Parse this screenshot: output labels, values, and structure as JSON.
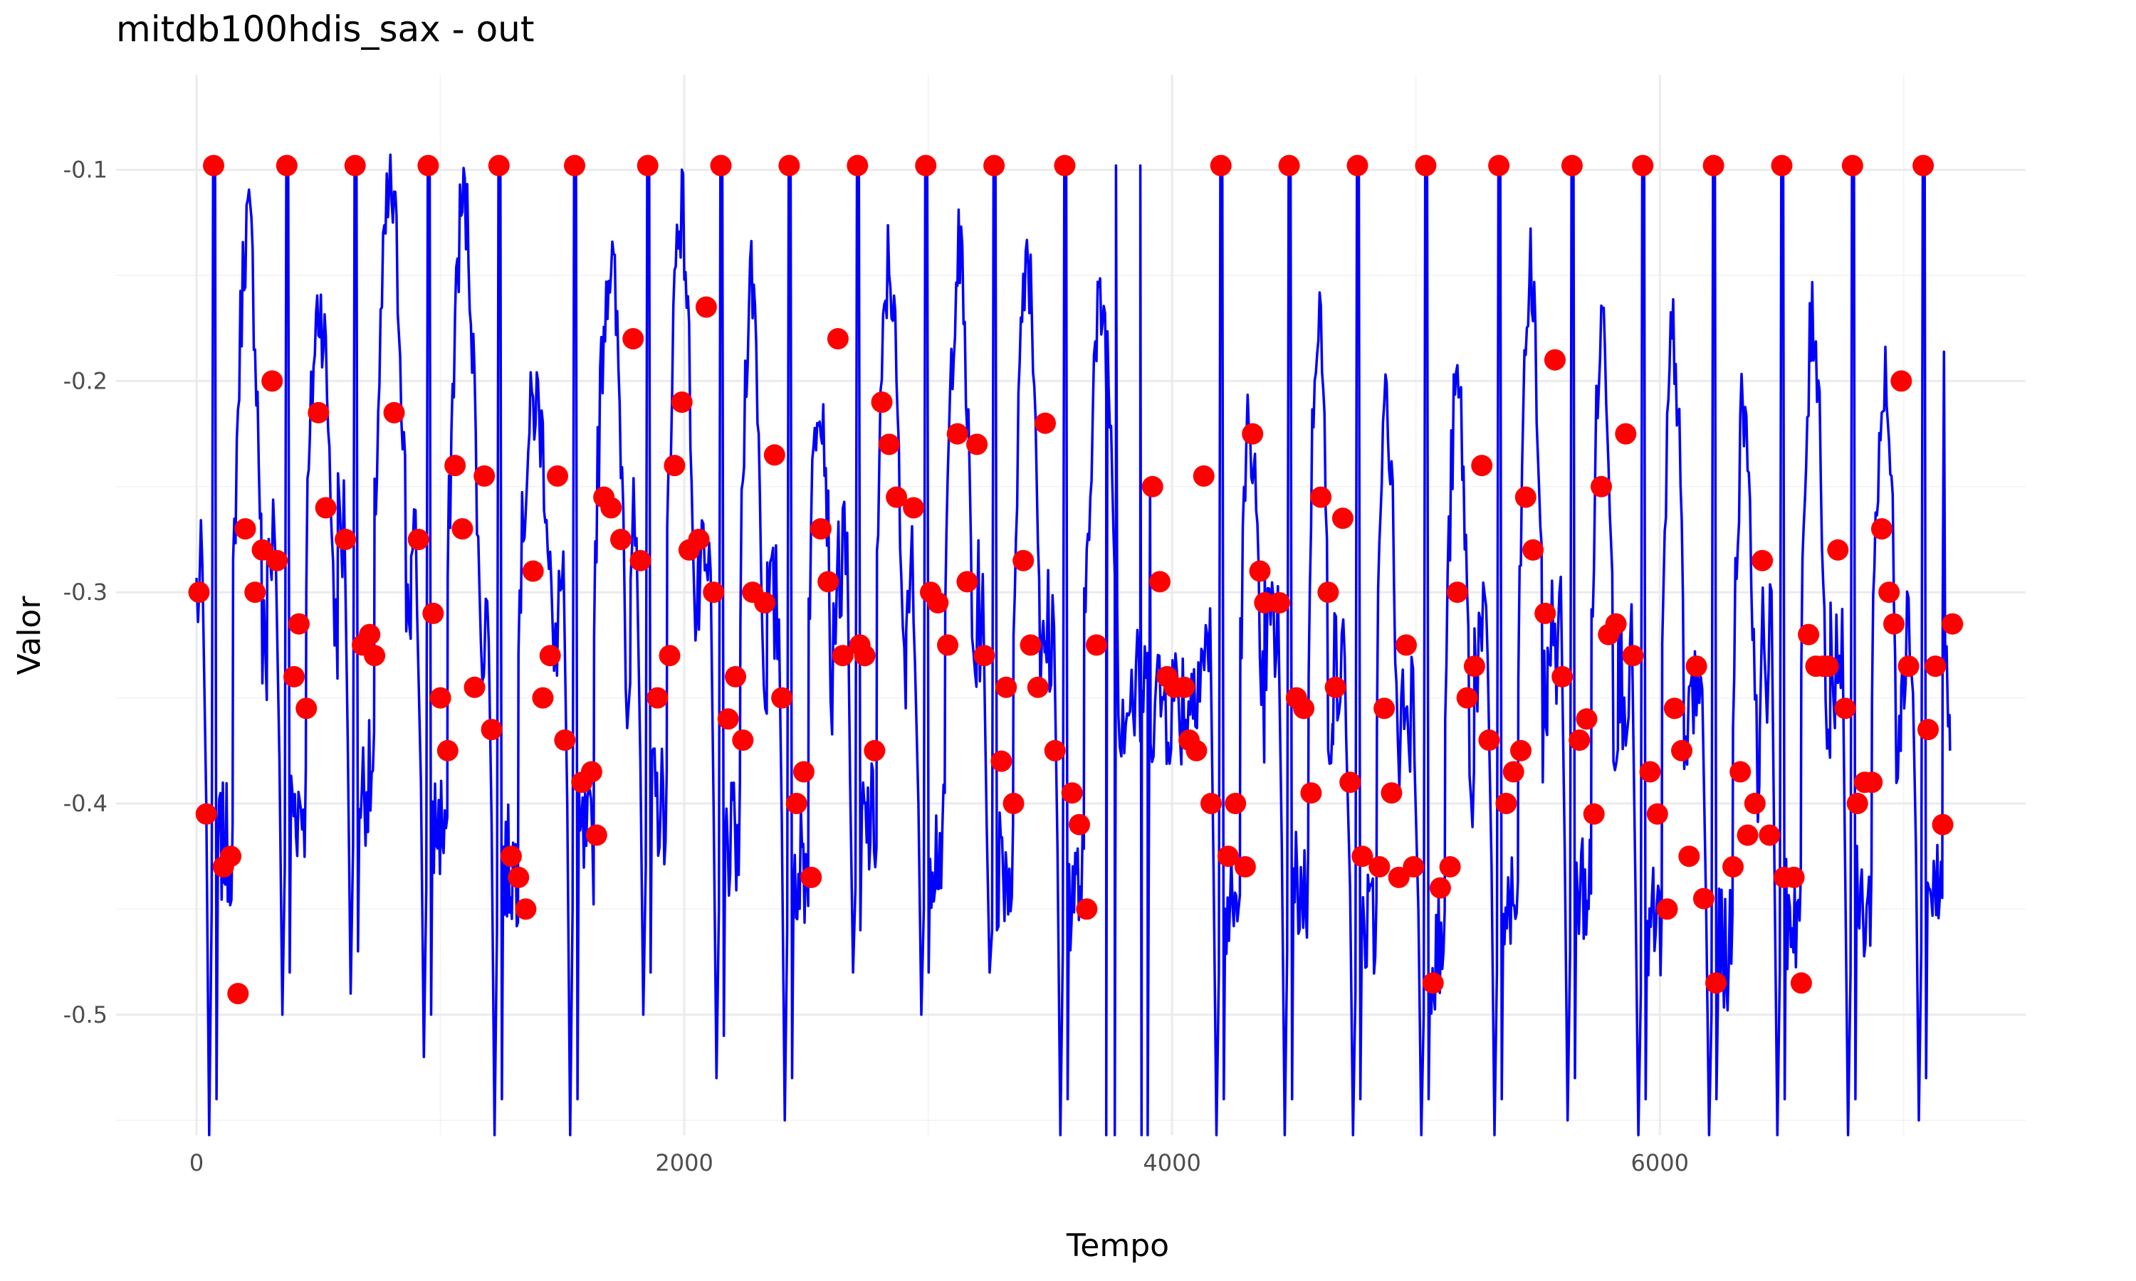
{
  "chart_data": {
    "type": "line",
    "title": "mitdb100hdis_sax - out",
    "xlabel": "Tempo",
    "ylabel": "Valor",
    "xlim": [
      -330,
      7500
    ],
    "ylim": [
      -0.557,
      -0.055
    ],
    "x_ticks": [
      0,
      2000,
      4000,
      6000
    ],
    "x_tick_labels": [
      "0",
      "2000",
      "4000",
      "6000"
    ],
    "y_ticks": [
      -0.5,
      -0.4,
      -0.3,
      -0.2,
      -0.1
    ],
    "y_tick_labels": [
      "-0.5",
      "-0.4",
      "-0.3",
      "-0.2",
      "-0.1"
    ],
    "grid": true,
    "line_color": "#0000ff",
    "point_color": "#ff0000",
    "beats": [
      {
        "start": 0,
        "min": -0.56,
        "base": -0.3
      },
      {
        "start": 290,
        "min": -0.5,
        "base": -0.28
      },
      {
        "start": 580,
        "min": -0.49,
        "base": -0.27
      },
      {
        "start": 880,
        "min": -0.52,
        "base": -0.29
      },
      {
        "start": 1180,
        "min": -0.56,
        "base": -0.31
      },
      {
        "start": 1480,
        "min": -0.56,
        "base": -0.3
      },
      {
        "start": 1780,
        "min": -0.5,
        "base": -0.28
      },
      {
        "start": 2060,
        "min": -0.53,
        "base": -0.3
      },
      {
        "start": 2340,
        "min": -0.55,
        "base": -0.31
      },
      {
        "start": 2620,
        "min": -0.48,
        "base": -0.29
      },
      {
        "start": 2910,
        "min": -0.5,
        "base": -0.3
      },
      {
        "start": 3200,
        "min": -0.48,
        "base": -0.31
      },
      {
        "start": 3480,
        "min": -0.56,
        "base": -0.32
      },
      {
        "start": 4090,
        "min": -0.56,
        "base": -0.33
      },
      {
        "start": 4380,
        "min": -0.56,
        "base": -0.32
      },
      {
        "start": 4660,
        "min": -0.56,
        "base": -0.34
      },
      {
        "start": 4940,
        "min": -0.56,
        "base": -0.35
      },
      {
        "start": 5240,
        "min": -0.56,
        "base": -0.33
      },
      {
        "start": 5540,
        "min": -0.55,
        "base": -0.32
      },
      {
        "start": 5830,
        "min": -0.56,
        "base": -0.34
      },
      {
        "start": 6120,
        "min": -0.56,
        "base": -0.35
      },
      {
        "start": 6410,
        "min": -0.56,
        "base": -0.33
      },
      {
        "start": 6700,
        "min": -0.56,
        "base": -0.33
      },
      {
        "start": 6990,
        "min": -0.55,
        "base": -0.32
      }
    ],
    "flat_segment": {
      "x_start": 3730,
      "x_rise": 3770,
      "x_fall": 3870,
      "x_end": 3900,
      "top": -0.098,
      "bottom": -0.56
    },
    "line_end": {
      "x": 7190,
      "y": -0.375
    },
    "points": [
      [
        10,
        -0.3
      ],
      [
        40,
        -0.405
      ],
      [
        70,
        -0.098
      ],
      [
        110,
        -0.43
      ],
      [
        140,
        -0.425
      ],
      [
        170,
        -0.49
      ],
      [
        200,
        -0.27
      ],
      [
        240,
        -0.3
      ],
      [
        270,
        -0.28
      ],
      [
        310,
        -0.2
      ],
      [
        330,
        -0.285
      ],
      [
        370,
        -0.098
      ],
      [
        400,
        -0.34
      ],
      [
        420,
        -0.315
      ],
      [
        450,
        -0.355
      ],
      [
        500,
        -0.215
      ],
      [
        530,
        -0.26
      ],
      [
        610,
        -0.275
      ],
      [
        650,
        -0.098
      ],
      [
        680,
        -0.325
      ],
      [
        710,
        -0.32
      ],
      [
        730,
        -0.33
      ],
      [
        810,
        -0.215
      ],
      [
        910,
        -0.275
      ],
      [
        950,
        -0.098
      ],
      [
        970,
        -0.31
      ],
      [
        1000,
        -0.35
      ],
      [
        1030,
        -0.375
      ],
      [
        1060,
        -0.24
      ],
      [
        1090,
        -0.27
      ],
      [
        1140,
        -0.345
      ],
      [
        1180,
        -0.245
      ],
      [
        1210,
        -0.365
      ],
      [
        1240,
        -0.098
      ],
      [
        1290,
        -0.425
      ],
      [
        1320,
        -0.435
      ],
      [
        1350,
        -0.45
      ],
      [
        1380,
        -0.29
      ],
      [
        1420,
        -0.35
      ],
      [
        1450,
        -0.33
      ],
      [
        1480,
        -0.245
      ],
      [
        1510,
        -0.37
      ],
      [
        1550,
        -0.098
      ],
      [
        1580,
        -0.39
      ],
      [
        1620,
        -0.385
      ],
      [
        1640,
        -0.415
      ],
      [
        1670,
        -0.255
      ],
      [
        1700,
        -0.26
      ],
      [
        1740,
        -0.275
      ],
      [
        1790,
        -0.18
      ],
      [
        1820,
        -0.285
      ],
      [
        1850,
        -0.098
      ],
      [
        1890,
        -0.35
      ],
      [
        1940,
        -0.33
      ],
      [
        1960,
        -0.24
      ],
      [
        1990,
        -0.21
      ],
      [
        2020,
        -0.28
      ],
      [
        2060,
        -0.275
      ],
      [
        2090,
        -0.165
      ],
      [
        2120,
        -0.3
      ],
      [
        2150,
        -0.098
      ],
      [
        2180,
        -0.36
      ],
      [
        2210,
        -0.34
      ],
      [
        2240,
        -0.37
      ],
      [
        2280,
        -0.3
      ],
      [
        2330,
        -0.305
      ],
      [
        2370,
        -0.235
      ],
      [
        2400,
        -0.35
      ],
      [
        2430,
        -0.098
      ],
      [
        2460,
        -0.4
      ],
      [
        2490,
        -0.385
      ],
      [
        2520,
        -0.435
      ],
      [
        2560,
        -0.27
      ],
      [
        2590,
        -0.295
      ],
      [
        2630,
        -0.18
      ],
      [
        2650,
        -0.33
      ],
      [
        2710,
        -0.098
      ],
      [
        2720,
        -0.325
      ],
      [
        2740,
        -0.33
      ],
      [
        2780,
        -0.375
      ],
      [
        2810,
        -0.21
      ],
      [
        2840,
        -0.23
      ],
      [
        2870,
        -0.255
      ],
      [
        2940,
        -0.26
      ],
      [
        2990,
        -0.098
      ],
      [
        3010,
        -0.3
      ],
      [
        3040,
        -0.305
      ],
      [
        3080,
        -0.325
      ],
      [
        3120,
        -0.225
      ],
      [
        3160,
        -0.295
      ],
      [
        3200,
        -0.23
      ],
      [
        3230,
        -0.33
      ],
      [
        3270,
        -0.098
      ],
      [
        3300,
        -0.38
      ],
      [
        3320,
        -0.345
      ],
      [
        3350,
        -0.4
      ],
      [
        3390,
        -0.285
      ],
      [
        3420,
        -0.325
      ],
      [
        3450,
        -0.345
      ],
      [
        3480,
        -0.22
      ],
      [
        3520,
        -0.375
      ],
      [
        3560,
        -0.098
      ],
      [
        3590,
        -0.395
      ],
      [
        3620,
        -0.41
      ],
      [
        3650,
        -0.45
      ],
      [
        3690,
        -0.325
      ],
      [
        3920,
        -0.25
      ],
      [
        3950,
        -0.295
      ],
      [
        3980,
        -0.34
      ],
      [
        4010,
        -0.345
      ],
      [
        4050,
        -0.345
      ],
      [
        4070,
        -0.37
      ],
      [
        4100,
        -0.375
      ],
      [
        4130,
        -0.245
      ],
      [
        4160,
        -0.4
      ],
      [
        4200,
        -0.098
      ],
      [
        4230,
        -0.425
      ],
      [
        4260,
        -0.4
      ],
      [
        4300,
        -0.43
      ],
      [
        4330,
        -0.225
      ],
      [
        4360,
        -0.29
      ],
      [
        4380,
        -0.305
      ],
      [
        4440,
        -0.305
      ],
      [
        4480,
        -0.098
      ],
      [
        4510,
        -0.35
      ],
      [
        4540,
        -0.355
      ],
      [
        4570,
        -0.395
      ],
      [
        4610,
        -0.255
      ],
      [
        4640,
        -0.3
      ],
      [
        4670,
        -0.345
      ],
      [
        4700,
        -0.265
      ],
      [
        4730,
        -0.39
      ],
      [
        4760,
        -0.098
      ],
      [
        4780,
        -0.425
      ],
      [
        4850,
        -0.43
      ],
      [
        4870,
        -0.355
      ],
      [
        4900,
        -0.395
      ],
      [
        4930,
        -0.435
      ],
      [
        4960,
        -0.325
      ],
      [
        4990,
        -0.43
      ],
      [
        5040,
        -0.098
      ],
      [
        5070,
        -0.485
      ],
      [
        5100,
        -0.44
      ],
      [
        5140,
        -0.43
      ],
      [
        5170,
        -0.3
      ],
      [
        5210,
        -0.35
      ],
      [
        5240,
        -0.335
      ],
      [
        5270,
        -0.24
      ],
      [
        5300,
        -0.37
      ],
      [
        5340,
        -0.098
      ],
      [
        5370,
        -0.4
      ],
      [
        5400,
        -0.385
      ],
      [
        5430,
        -0.375
      ],
      [
        5450,
        -0.255
      ],
      [
        5480,
        -0.28
      ],
      [
        5530,
        -0.31
      ],
      [
        5570,
        -0.19
      ],
      [
        5600,
        -0.34
      ],
      [
        5640,
        -0.098
      ],
      [
        5670,
        -0.37
      ],
      [
        5700,
        -0.36
      ],
      [
        5730,
        -0.405
      ],
      [
        5760,
        -0.25
      ],
      [
        5790,
        -0.32
      ],
      [
        5820,
        -0.315
      ],
      [
        5860,
        -0.225
      ],
      [
        5890,
        -0.33
      ],
      [
        5930,
        -0.098
      ],
      [
        5960,
        -0.385
      ],
      [
        5990,
        -0.405
      ],
      [
        6030,
        -0.45
      ],
      [
        6060,
        -0.355
      ],
      [
        6090,
        -0.375
      ],
      [
        6120,
        -0.425
      ],
      [
        6150,
        -0.335
      ],
      [
        6180,
        -0.445
      ],
      [
        6220,
        -0.098
      ],
      [
        6230,
        -0.485
      ],
      [
        6300,
        -0.43
      ],
      [
        6330,
        -0.385
      ],
      [
        6360,
        -0.415
      ],
      [
        6390,
        -0.4
      ],
      [
        6420,
        -0.285
      ],
      [
        6450,
        -0.415
      ],
      [
        6500,
        -0.098
      ],
      [
        6510,
        -0.435
      ],
      [
        6550,
        -0.435
      ],
      [
        6580,
        -0.485
      ],
      [
        6610,
        -0.32
      ],
      [
        6640,
        -0.335
      ],
      [
        6670,
        -0.335
      ],
      [
        6690,
        -0.335
      ],
      [
        6730,
        -0.28
      ],
      [
        6760,
        -0.355
      ],
      [
        6790,
        -0.098
      ],
      [
        6810,
        -0.4
      ],
      [
        6840,
        -0.39
      ],
      [
        6870,
        -0.39
      ],
      [
        6910,
        -0.27
      ],
      [
        6940,
        -0.3
      ],
      [
        6960,
        -0.315
      ],
      [
        6990,
        -0.2
      ],
      [
        7020,
        -0.335
      ],
      [
        7080,
        -0.098
      ],
      [
        7100,
        -0.365
      ],
      [
        7130,
        -0.335
      ],
      [
        7160,
        -0.41
      ],
      [
        7200,
        -0.315
      ]
    ]
  }
}
